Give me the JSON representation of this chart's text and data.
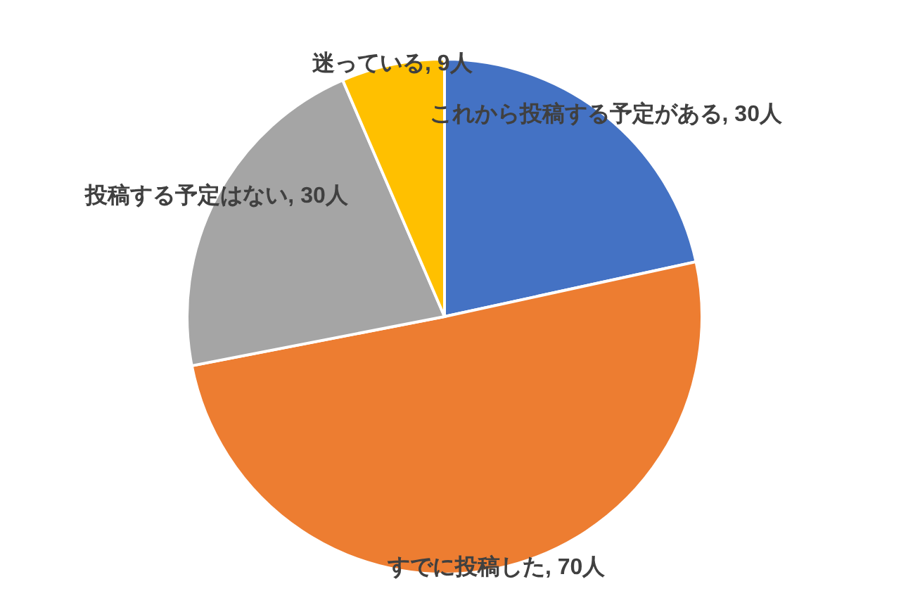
{
  "chart_data": {
    "type": "pie",
    "categories": [
      "これから投稿する予定がある",
      "すでに投稿した",
      "投稿する予定はない",
      "迷っている"
    ],
    "values": [
      30,
      70,
      30,
      9
    ],
    "value_labels": [
      "30人",
      "70人",
      "30人",
      "9人"
    ],
    "colors": [
      "#4472c4",
      "#ed7d31",
      "#a5a5a5",
      "#ffc000"
    ],
    "legend": false
  }
}
